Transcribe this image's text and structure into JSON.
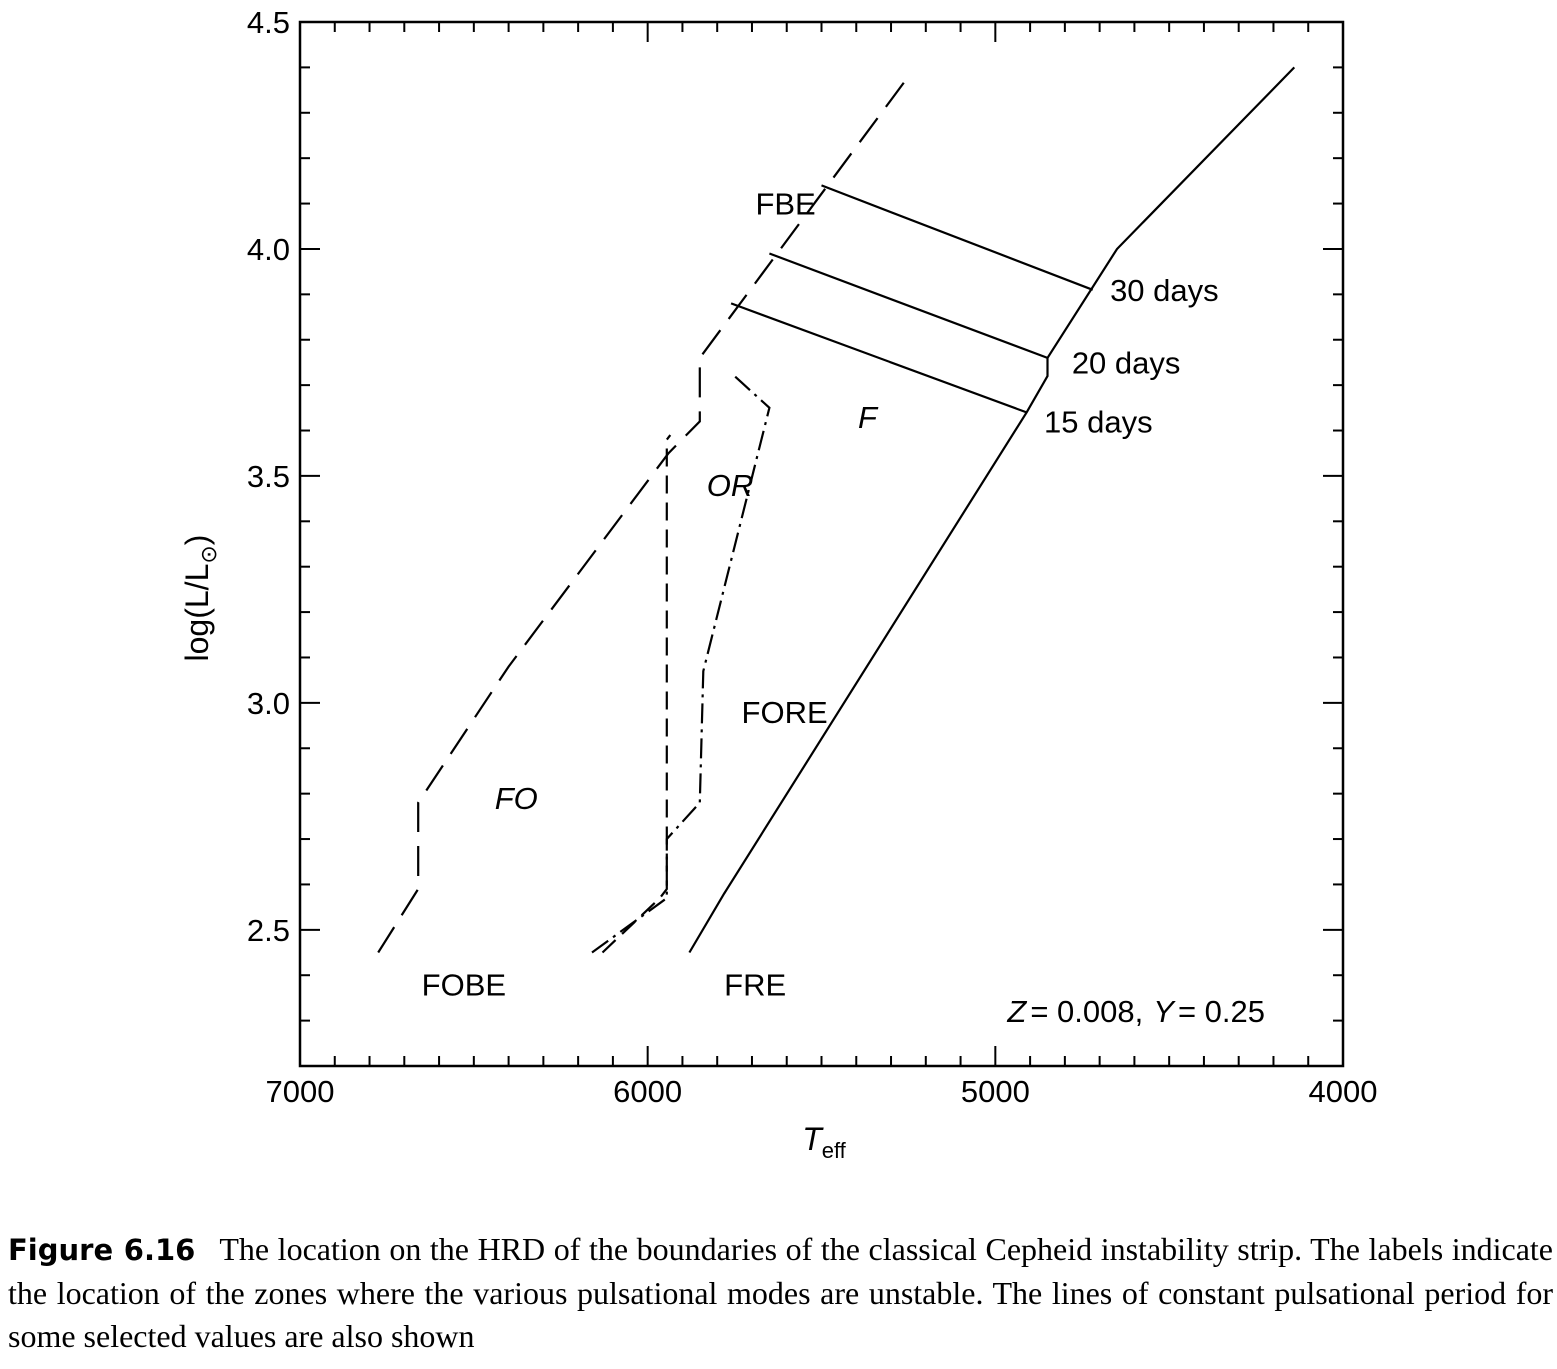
{
  "chart_data": {
    "type": "line",
    "xlabel": "T",
    "xlabel_sub": "eff",
    "ylabel": "log(L/L",
    "ylabel_sub": "⊙",
    "ylabel_close": ")",
    "xlim": [
      7000,
      4000
    ],
    "ylim": [
      2.2,
      4.5
    ],
    "x_ticks": [
      7000,
      6000,
      5000,
      4000
    ],
    "x_tick_labels": [
      "7000",
      "6000",
      "5000",
      "4000"
    ],
    "y_ticks": [
      2.5,
      3.0,
      3.5,
      4.0,
      4.5
    ],
    "y_tick_labels": [
      "2.5",
      "3.0",
      "3.5",
      "4.0",
      "4.5"
    ],
    "grid": false,
    "lines": [
      {
        "id": "fobe-fbe",
        "style": "dashed-long",
        "points": [
          [
            6775,
            2.45
          ],
          [
            6660,
            2.59
          ],
          [
            6660,
            2.78
          ],
          [
            6400,
            3.08
          ],
          [
            5940,
            3.55
          ],
          [
            5850,
            3.62
          ],
          [
            5850,
            3.76
          ],
          [
            5250,
            4.38
          ]
        ]
      },
      {
        "id": "or-blue",
        "style": "dashed-short",
        "points": [
          [
            6130,
            2.45
          ],
          [
            5965,
            2.57
          ],
          [
            5945,
            2.59
          ],
          [
            5945,
            2.7
          ],
          [
            5945,
            3.58
          ],
          [
            5935,
            3.59
          ]
        ]
      },
      {
        "id": "fore",
        "style": "dash-dot",
        "points": [
          [
            6160,
            2.45
          ],
          [
            5945,
            2.57
          ],
          [
            5945,
            2.7
          ],
          [
            5850,
            2.78
          ],
          [
            5840,
            3.07
          ],
          [
            5650,
            3.65
          ],
          [
            5750,
            3.72
          ]
        ]
      },
      {
        "id": "fre",
        "style": "solid",
        "points": [
          [
            5880,
            2.45
          ],
          [
            5780,
            2.58
          ],
          [
            4910,
            3.64
          ],
          [
            4850,
            3.72
          ],
          [
            4850,
            3.76
          ],
          [
            4650,
            4.0
          ],
          [
            4140,
            4.4
          ]
        ]
      },
      {
        "id": "p30",
        "style": "solid",
        "points": [
          [
            5500,
            4.14
          ],
          [
            4720,
            3.91
          ]
        ]
      },
      {
        "id": "p20",
        "style": "solid",
        "points": [
          [
            5650,
            3.99
          ],
          [
            4850,
            3.76
          ]
        ]
      },
      {
        "id": "p15",
        "style": "solid",
        "points": [
          [
            5760,
            3.88
          ],
          [
            4910,
            3.64
          ]
        ]
      }
    ],
    "annotations": [
      {
        "text": "FBE",
        "x": 5690,
        "y": 4.1,
        "italic": false
      },
      {
        "text": "30 days",
        "x": 4670,
        "y": 3.91,
        "italic": false
      },
      {
        "text": "20 days",
        "x": 4780,
        "y": 3.75,
        "italic": false
      },
      {
        "text": "15 days",
        "x": 4860,
        "y": 3.62,
        "italic": false
      },
      {
        "text": "F",
        "x": 5395,
        "y": 3.63,
        "italic": true
      },
      {
        "text": "OR",
        "x": 5830,
        "y": 3.48,
        "italic": true
      },
      {
        "text": "FORE",
        "x": 5730,
        "y": 2.98,
        "italic": false
      },
      {
        "text": "FO",
        "x": 6440,
        "y": 2.79,
        "italic": true
      },
      {
        "text": "FOBE",
        "x": 6650,
        "y": 2.38,
        "italic": false
      },
      {
        "text": "FRE",
        "x": 5780,
        "y": 2.38,
        "italic": false
      }
    ],
    "note": {
      "z_label": "Z",
      "z_value": "= 0.008,",
      "y_label": "Y",
      "y_value": "= 0.25"
    }
  },
  "caption": {
    "label": "Figure 6.16",
    "text": "The location on the HRD of the boundaries of the classical Cepheid instability strip. The labels indicate the location of the zones where the various pulsational modes are unstable. The lines of constant pulsational period for some selected values are also shown"
  }
}
